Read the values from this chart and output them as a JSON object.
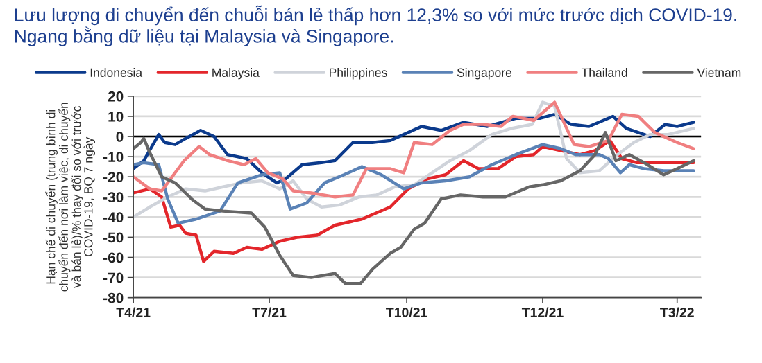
{
  "chart_data": {
    "type": "line",
    "title": "Lưu lượng di chuyển đến chuỗi bán lẻ thấp hơn 12,3% so với mức trước dịch COVID-19.\nNgang bằng dữ liệu tại Malaysia và Singapore.",
    "ylabel": "Hạn chế di chuyển (trung bình di\nchuyển đến nơi làm việc, di chuyển\nvà bán lẻ)/% thay đổi so với trước\nCOVID-19, BQ 7 ngày",
    "xlim": [
      "2021-04-01",
      "2022-04-16"
    ],
    "ylim": [
      -80,
      20
    ],
    "xticks": [
      {
        "value": "2021-04-01",
        "label": "T4/21"
      },
      {
        "value": "2021-07-01",
        "label": "T7/21"
      },
      {
        "value": "2021-10-01",
        "label": "T10/21"
      },
      {
        "value": "2021-12-31",
        "label": "T12/21"
      },
      {
        "value": "2022-03-31",
        "label": "T3/22"
      }
    ],
    "yticks": [
      -80,
      -70,
      -60,
      -50,
      -40,
      -30,
      -20,
      -10,
      0,
      10,
      20
    ],
    "grid": "y",
    "legend": "top",
    "ref_lines": [
      {
        "axis": "y",
        "value": 0,
        "color": "#000000"
      }
    ],
    "series": [
      {
        "name": "Indonesia",
        "color": "#0b3a8c",
        "x": [
          "2021-04-01",
          "2021-04-08",
          "2021-04-18",
          "2021-04-22",
          "2021-04-29",
          "2021-05-06",
          "2021-05-16",
          "2021-05-25",
          "2021-06-03",
          "2021-06-16",
          "2021-06-26",
          "2021-07-06",
          "2021-07-12",
          "2021-07-23",
          "2021-08-05",
          "2021-08-14",
          "2021-08-26",
          "2021-09-08",
          "2021-09-20",
          "2021-09-29",
          "2021-10-11",
          "2021-10-24",
          "2021-11-08",
          "2021-11-24",
          "2021-12-13",
          "2021-12-29",
          "2022-01-08",
          "2022-01-19",
          "2022-01-31",
          "2022-02-16",
          "2022-02-25",
          "2022-03-13",
          "2022-03-23",
          "2022-03-31",
          "2022-04-11"
        ],
        "values": [
          -16,
          -12,
          1,
          -3,
          -4,
          -1,
          3,
          0,
          -9,
          -11,
          -18,
          -23,
          -21,
          -14,
          -13,
          -12,
          -3,
          -3,
          -2,
          1,
          5,
          3,
          7,
          5,
          9,
          9,
          11,
          6,
          5,
          10,
          4,
          0,
          6,
          5,
          7
        ]
      },
      {
        "name": "Malaysia",
        "color": "#e3262b",
        "x": [
          "2021-04-01",
          "2021-04-12",
          "2021-04-20",
          "2021-04-26",
          "2021-05-02",
          "2021-05-06",
          "2021-05-13",
          "2021-05-18",
          "2021-05-25",
          "2021-06-07",
          "2021-06-16",
          "2021-06-26",
          "2021-07-08",
          "2021-07-20",
          "2021-08-02",
          "2021-08-14",
          "2021-09-01",
          "2021-09-20",
          "2021-10-02",
          "2021-10-15",
          "2021-10-27",
          "2021-11-08",
          "2021-11-18",
          "2021-12-01",
          "2021-12-13",
          "2021-12-25",
          "2021-12-31",
          "2022-01-12",
          "2022-01-25",
          "2022-02-04",
          "2022-02-14",
          "2022-02-22",
          "2022-03-04",
          "2022-03-16",
          "2022-03-28",
          "2022-04-11"
        ],
        "values": [
          -28,
          -26,
          -30,
          -45,
          -44,
          -48,
          -49,
          -62,
          -57,
          -58,
          -55,
          -56,
          -52,
          -50,
          -49,
          -44,
          -41,
          -35,
          -26,
          -21,
          -19,
          -12,
          -16,
          -16,
          -10,
          -9,
          -5,
          -7,
          -9,
          -7,
          -2,
          -11,
          -13,
          -13,
          -13,
          -13
        ]
      },
      {
        "name": "Philippines",
        "color": "#cfd3da",
        "x": [
          "2021-04-01",
          "2021-04-12",
          "2021-04-24",
          "2021-05-06",
          "2021-05-19",
          "2021-05-31",
          "2021-06-13",
          "2021-06-26",
          "2021-07-08",
          "2021-07-17",
          "2021-07-26",
          "2021-08-05",
          "2021-08-17",
          "2021-08-30",
          "2021-09-11",
          "2021-09-23",
          "2021-10-06",
          "2021-10-18",
          "2021-10-30",
          "2021-11-12",
          "2021-11-27",
          "2021-12-10",
          "2021-12-24",
          "2021-12-31",
          "2022-01-08",
          "2022-01-16",
          "2022-01-25",
          "2022-02-07",
          "2022-02-19",
          "2022-03-02",
          "2022-03-13",
          "2022-03-25",
          "2022-04-11"
        ],
        "values": [
          -40,
          -35,
          -30,
          -26,
          -27,
          -25,
          -23,
          -22,
          -26,
          -22,
          -31,
          -35,
          -34,
          -30,
          -29,
          -25,
          -24,
          -18,
          -12,
          -7,
          1,
          4,
          6,
          17,
          15,
          -11,
          -18,
          -17,
          -9,
          -3,
          1,
          1,
          4
        ]
      },
      {
        "name": "Singapore",
        "color": "#5a82b6",
        "x": [
          "2021-04-01",
          "2021-04-08",
          "2021-04-18",
          "2021-04-24",
          "2021-05-01",
          "2021-05-13",
          "2021-05-29",
          "2021-06-10",
          "2021-06-26",
          "2021-07-08",
          "2021-07-15",
          "2021-07-26",
          "2021-08-07",
          "2021-08-20",
          "2021-09-01",
          "2021-09-14",
          "2021-09-29",
          "2021-10-11",
          "2021-10-27",
          "2021-11-12",
          "2021-11-27",
          "2021-12-13",
          "2021-12-31",
          "2022-01-12",
          "2022-01-22",
          "2022-02-07",
          "2022-02-13",
          "2022-02-21",
          "2022-02-27",
          "2022-03-09",
          "2022-03-22",
          "2022-04-11"
        ],
        "values": [
          -14,
          -13,
          -14,
          -31,
          -43,
          -41,
          -37,
          -23,
          -19,
          -18,
          -36,
          -33,
          -23,
          -19,
          -15,
          -19,
          -26,
          -23,
          -22,
          -20,
          -14,
          -9,
          -4,
          -6,
          -9,
          -9,
          -11,
          -18,
          -14,
          -16,
          -17,
          -17
        ]
      },
      {
        "name": "Thailand",
        "color": "#f07f80",
        "x": [
          "2021-04-01",
          "2021-04-12",
          "2021-04-20",
          "2021-04-27",
          "2021-05-05",
          "2021-05-15",
          "2021-05-22",
          "2021-06-03",
          "2021-06-14",
          "2021-06-22",
          "2021-06-30",
          "2021-07-10",
          "2021-07-17",
          "2021-07-29",
          "2021-08-14",
          "2021-08-26",
          "2021-09-04",
          "2021-09-20",
          "2021-09-29",
          "2021-10-06",
          "2021-10-18",
          "2021-10-30",
          "2021-11-08",
          "2021-11-21",
          "2021-12-03",
          "2021-12-11",
          "2021-12-25",
          "2022-01-08",
          "2022-01-21",
          "2022-01-31",
          "2022-02-13",
          "2022-02-22",
          "2022-03-05",
          "2022-03-16",
          "2022-03-31",
          "2022-04-11"
        ],
        "values": [
          -20,
          -26,
          -27,
          -20,
          -12,
          -5,
          -9,
          -12,
          -14,
          -11,
          -18,
          -21,
          -27,
          -28,
          -30,
          -29,
          -16,
          -16,
          -18,
          -3,
          -4,
          3,
          6,
          6,
          5,
          10,
          8,
          17,
          -4,
          -5,
          -2,
          11,
          10,
          2,
          -3,
          -6
        ]
      },
      {
        "name": "Vietnam",
        "color": "#666666",
        "x": [
          "2021-04-01",
          "2021-04-06",
          "2021-04-08",
          "2021-04-12",
          "2021-04-20",
          "2021-04-29",
          "2021-05-10",
          "2021-05-19",
          "2021-05-31",
          "2021-06-19",
          "2021-06-28",
          "2021-07-08",
          "2021-07-17",
          "2021-07-29",
          "2021-08-14",
          "2021-08-21",
          "2021-08-31",
          "2021-09-08",
          "2021-09-20",
          "2021-09-27",
          "2021-10-06",
          "2021-10-13",
          "2021-10-24",
          "2021-11-06",
          "2021-11-21",
          "2021-12-06",
          "2021-12-22",
          "2021-12-31",
          "2022-01-12",
          "2022-01-25",
          "2022-02-04",
          "2022-02-11",
          "2022-02-18",
          "2022-02-27",
          "2022-03-09",
          "2022-03-22",
          "2022-03-31",
          "2022-04-11"
        ],
        "values": [
          -6,
          -3,
          -1,
          -8,
          -20,
          -23,
          -31,
          -36,
          -37,
          -38,
          -45,
          -59,
          -69,
          -70,
          -68,
          -73,
          -73,
          -66,
          -58,
          -55,
          -46,
          -43,
          -31,
          -29,
          -30,
          -30,
          -25,
          -24,
          -22,
          -17,
          -9,
          2,
          -12,
          -9,
          -13,
          -19,
          -16,
          -12
        ]
      }
    ]
  }
}
